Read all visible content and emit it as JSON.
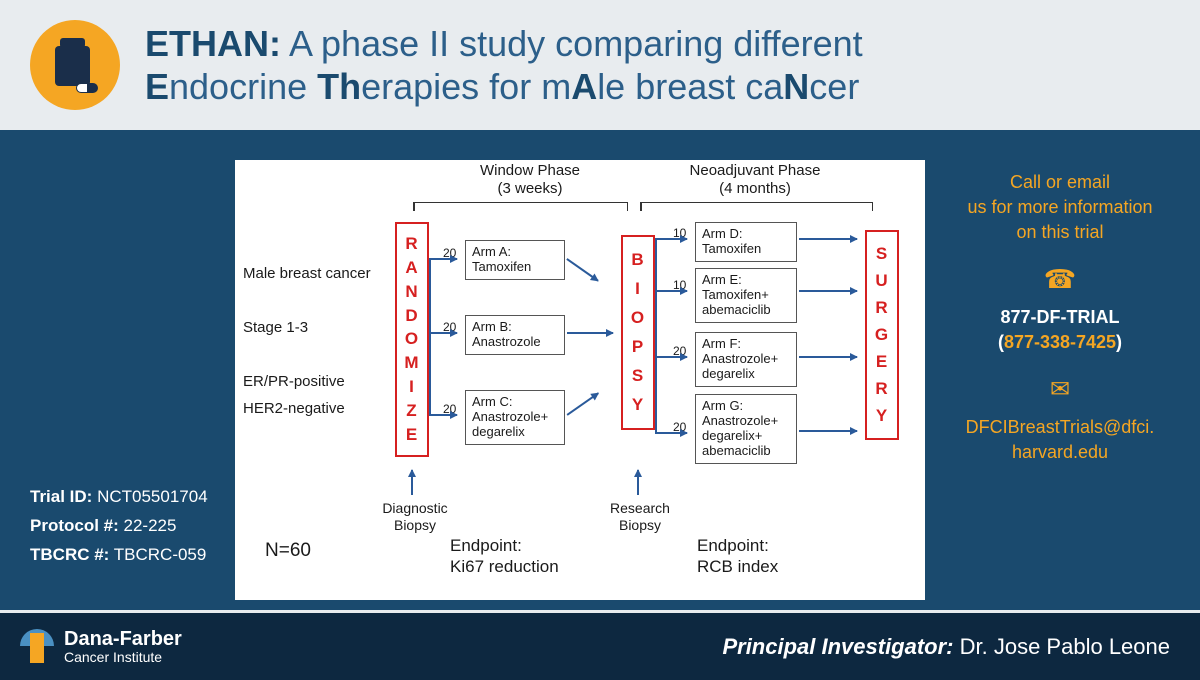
{
  "header": {
    "prefix": "ETHAN:",
    "line": " A phase II study comparing different ",
    "e": "E",
    "ndocrine": "ndocrine ",
    "th": "Th",
    "erapies": "erapies for m",
    "a": "A",
    "le": "le breast ca",
    "n": "N",
    "cer": "cer"
  },
  "left": {
    "trial_id_label": "Trial ID:",
    "trial_id": " NCT05501704",
    "protocol_label": "Protocol #:",
    "protocol": " 22-225",
    "tbcrc_label": "TBCRC #:",
    "tbcrc": " TBCRC-059"
  },
  "diagram": {
    "phase1_label": "Window Phase\n(3 weeks)",
    "phase2_label": "Neoadjuvant Phase\n(4 months)",
    "randomize": "RANDOMIZE",
    "biopsy": "BIOPSY",
    "surgery": "SURGERY",
    "criteria": [
      "Male breast cancer",
      "Stage 1-3",
      "ER/PR-positive",
      "HER2-negative"
    ],
    "armA": "Arm A:\nTamoxifen",
    "armB": "Arm B:\nAnastrozole",
    "armC": "Arm C:\nAnastrozole+\ndegarelix",
    "armD": "Arm D:\nTamoxifen",
    "armE": "Arm E:\nTamoxifen+\nabemaciclib",
    "armF": "Arm F:\nAnastrozole+\ndegarelix",
    "armG": "Arm G:\nAnastrozole+\ndegarelix+\nabemaciclib",
    "n20": "20",
    "n10": "10",
    "diag_biopsy": "Diagnostic\nBiopsy",
    "res_biopsy": "Research\nBiopsy",
    "endpoint1": "Endpoint:\nKi67 reduction",
    "endpoint2": "Endpoint:\nRCB index",
    "ntotal": "N=60"
  },
  "right": {
    "cta1": "Call or email",
    "cta2": "us for more information",
    "cta3": "on this trial",
    "phone1": "877-DF-TRIAL",
    "phone2": "(877-338-7425)",
    "email1": "DFCIBreastTrials@dfci.",
    "email2": "harvard.edu"
  },
  "footer": {
    "org1": "Dana-Farber",
    "org2": "Cancer Institute",
    "pi_label": "Principal Investigator:",
    "pi_name": " Dr. Jose Pablo Leone"
  }
}
